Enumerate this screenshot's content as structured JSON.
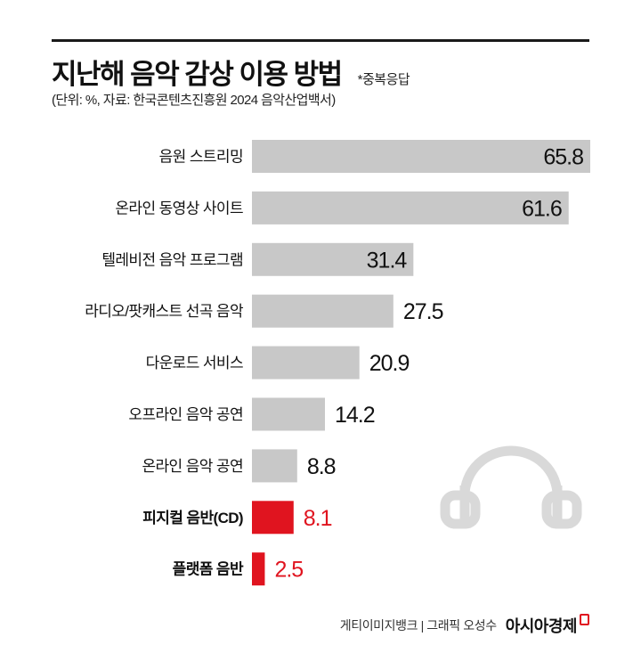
{
  "header": {
    "title": "지난해 음악 감상 이용 방법",
    "note": "*중복응답",
    "subtitle": "(단위: %, 자료: 한국콘텐츠진흥원 2024 음악산업백서)"
  },
  "colors": {
    "bar_default": "#c8c8c8",
    "bar_highlight": "#e0141f",
    "text_default": "#111111",
    "icon_outline": "#d9d9d9"
  },
  "chart_data": {
    "type": "bar",
    "orientation": "horizontal",
    "categories": [
      "음원 스트리밍",
      "온라인 동영상 사이트",
      "텔레비전 음악 프로그램",
      "라디오/팟캐스트 선곡 음악",
      "다운로드 서비스",
      "오프라인 음악 공연",
      "온라인 음악 공연",
      "피지컬 음반(CD)",
      "플랫폼 음반"
    ],
    "values": [
      65.8,
      61.6,
      31.4,
      27.5,
      20.9,
      14.2,
      8.8,
      8.1,
      2.5
    ],
    "highlighted": [
      false,
      false,
      false,
      false,
      false,
      false,
      false,
      true,
      true
    ],
    "value_labels": [
      "65.8",
      "61.6",
      "31.4",
      "27.5",
      "20.9",
      "14.2",
      "8.8",
      "8.1",
      "2.5"
    ],
    "xlim": [
      0,
      65.8
    ],
    "grid": false,
    "legend": "none"
  },
  "decor": {
    "icon": "headphones-icon"
  },
  "footer": {
    "credit": "게티이미지뱅크 | 그래픽 오성수",
    "brand": "아시아경제"
  }
}
